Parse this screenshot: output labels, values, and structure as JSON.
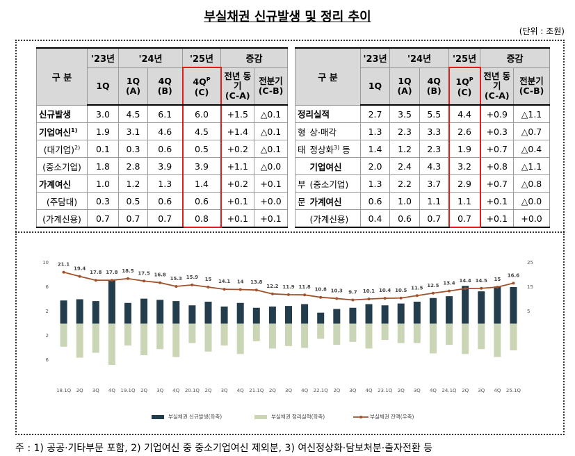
{
  "title": "부실채권 신규발생 및 정리 추이",
  "unit": "(단위 : 조원)",
  "tables": [
    {
      "header": {
        "label": "구 분",
        "years": [
          "'23년",
          "'24년",
          "'25년"
        ],
        "change": "증감",
        "columns": [
          {
            "text": "1Q"
          },
          {
            "text": "1Q",
            "sub": "(A)"
          },
          {
            "text": "4Q",
            "sub": "(B)"
          },
          {
            "text": "4Q",
            "sup": "P",
            "sub": "(C)"
          },
          {
            "text": "전년 동기",
            "sub": "(C-A)"
          },
          {
            "text": "전분기",
            "sub": "(C-B)"
          }
        ]
      },
      "rows": [
        {
          "label": "신규발생",
          "bold": true,
          "cells": [
            "3.0",
            "4.5",
            "6.1",
            "6.0",
            "+1.5",
            "△0.1"
          ]
        },
        {
          "label": "기업여신",
          "sup": "1)",
          "bold": true,
          "cells": [
            "1.9",
            "3.1",
            "4.6",
            "4.5",
            "+1.4",
            "△0.1"
          ]
        },
        {
          "label": "(대기업)",
          "sup": "2)",
          "cells": [
            "0.1",
            "0.3",
            "0.6",
            "0.5",
            "+0.2",
            "△0.1"
          ]
        },
        {
          "label": "(중소기업)",
          "cells": [
            "1.8",
            "2.8",
            "3.9",
            "3.9",
            "+1.1",
            "△0.0"
          ]
        },
        {
          "label": "가계여신",
          "bold": true,
          "cells": [
            "1.0",
            "1.2",
            "1.3",
            "1.4",
            "+0.2",
            "+0.1"
          ]
        },
        {
          "label": "(주담대)",
          "cells": [
            "0.3",
            "0.5",
            "0.6",
            "0.6",
            "+0.1",
            "+0.0"
          ]
        },
        {
          "label": "(가계신용)",
          "cells": [
            "0.7",
            "0.7",
            "0.7",
            "0.8",
            "+0.1",
            "+0.1"
          ]
        }
      ]
    },
    {
      "header": {
        "label": "구 분",
        "years": [
          "'23년",
          "'24년",
          "'25년"
        ],
        "change": "증감",
        "columns": [
          {
            "text": "1Q"
          },
          {
            "text": "1Q",
            "sub": "(A)"
          },
          {
            "text": "4Q",
            "sub": "(B)"
          },
          {
            "text": "1Q",
            "sup": "P",
            "sub": "(C)"
          },
          {
            "text": "전년 동기",
            "sub": "(C-A)"
          },
          {
            "text": "전분기",
            "sub": "(C-B)"
          }
        ]
      },
      "rows": [
        {
          "label": "정리실적",
          "bold": true,
          "cells": [
            "2.7",
            "3.5",
            "5.5",
            "4.4",
            "+0.9",
            "△1.1"
          ]
        },
        {
          "side": "형",
          "label": "상·매각",
          "cells": [
            "1.3",
            "2.3",
            "3.3",
            "2.6",
            "+0.3",
            "△0.7"
          ]
        },
        {
          "side": "태",
          "label": "정상화",
          "sup": "3)",
          "after": " 등",
          "cells": [
            "1.4",
            "1.2",
            "2.3",
            "1.9",
            "+0.7",
            "△0.4"
          ]
        },
        {
          "label": "기업여신",
          "bold": true,
          "cells": [
            "2.0",
            "2.4",
            "4.3",
            "3.2",
            "+0.8",
            "△1.1"
          ]
        },
        {
          "side": "부",
          "label": "(중소기업)",
          "cells": [
            "1.3",
            "2.2",
            "3.7",
            "2.9",
            "+0.7",
            "△0.8"
          ]
        },
        {
          "side": "문",
          "label": "가계여신",
          "bold": true,
          "cells": [
            "0.6",
            "1.0",
            "1.1",
            "1.1",
            "+0.1",
            "△0.0"
          ]
        },
        {
          "label": "(가계신용)",
          "cells": [
            "0.4",
            "0.6",
            "0.7",
            "0.7",
            "+0.1",
            "+0.0"
          ]
        }
      ]
    }
  ],
  "chart_data": {
    "type": "bar-line",
    "categories": [
      "18.1Q",
      "2Q",
      "3Q",
      "4Q",
      "19.1Q",
      "2Q",
      "3Q",
      "4Q",
      "20.1Q",
      "2Q",
      "3Q",
      "4Q",
      "21.1Q",
      "2Q",
      "3Q",
      "4Q",
      "22.1Q",
      "2Q",
      "3Q",
      "4Q",
      "23.1Q",
      "2Q",
      "3Q",
      "4Q",
      "24.1Q",
      "2Q",
      "3Q",
      "4Q",
      "25.1Q"
    ],
    "series": [
      {
        "name": "부실채권 신규발생(좌축)",
        "type": "bar",
        "color": "#233d4d",
        "values": [
          3.8,
          4.0,
          3.7,
          7.2,
          3.4,
          4.1,
          3.9,
          3.7,
          3.0,
          3.6,
          2.8,
          3.4,
          2.6,
          2.8,
          2.9,
          3.2,
          1.8,
          2.4,
          2.6,
          3.2,
          3.0,
          3.3,
          3.6,
          4.2,
          4.5,
          6.2,
          5.3,
          6.1,
          6.0
        ]
      },
      {
        "name": "부실채권 정리실적(좌축)",
        "type": "bar",
        "color": "#c9d5b5",
        "values": [
          -3.8,
          -5.6,
          -4.8,
          -6.8,
          -3.6,
          -5.2,
          -4.2,
          -5.5,
          -3.2,
          -4.6,
          -3.6,
          -5.0,
          -2.9,
          -4.1,
          -3.7,
          -4.0,
          -2.5,
          -3.5,
          -3.0,
          -4.1,
          -2.7,
          -3.2,
          -3.2,
          -4.9,
          -3.5,
          -5.0,
          -4.2,
          -5.5,
          -4.4
        ]
      },
      {
        "name": "부실채권 잔액(우축)",
        "type": "line",
        "axis": "y2",
        "color": "#a0522d",
        "values": [
          21.1,
          19.4,
          17.8,
          17.8,
          18.5,
          17.5,
          16.8,
          15.3,
          15.9,
          15.0,
          14.1,
          14.0,
          13.8,
          12.2,
          11.9,
          11.8,
          10.8,
          10.3,
          9.7,
          10.1,
          10.4,
          10.5,
          11.5,
          12.5,
          13.4,
          14.4,
          14.5,
          15.0,
          16.6
        ]
      }
    ],
    "ylim": [
      -8,
      10
    ],
    "yticks": [
      {
        "value": -6,
        "label": "6"
      },
      {
        "value": -2,
        "label": "2"
      },
      2,
      6,
      10
    ],
    "y2lim": [
      -20,
      25
    ],
    "y2ticks": [
      5,
      15,
      25
    ],
    "legend": "bottom"
  },
  "footnote": "주 : 1) 공공·기타부문 포함, 2) 기업여신 중 중소기업여신 제외분, 3) 여신정상화·담보처분·출자전환 등"
}
